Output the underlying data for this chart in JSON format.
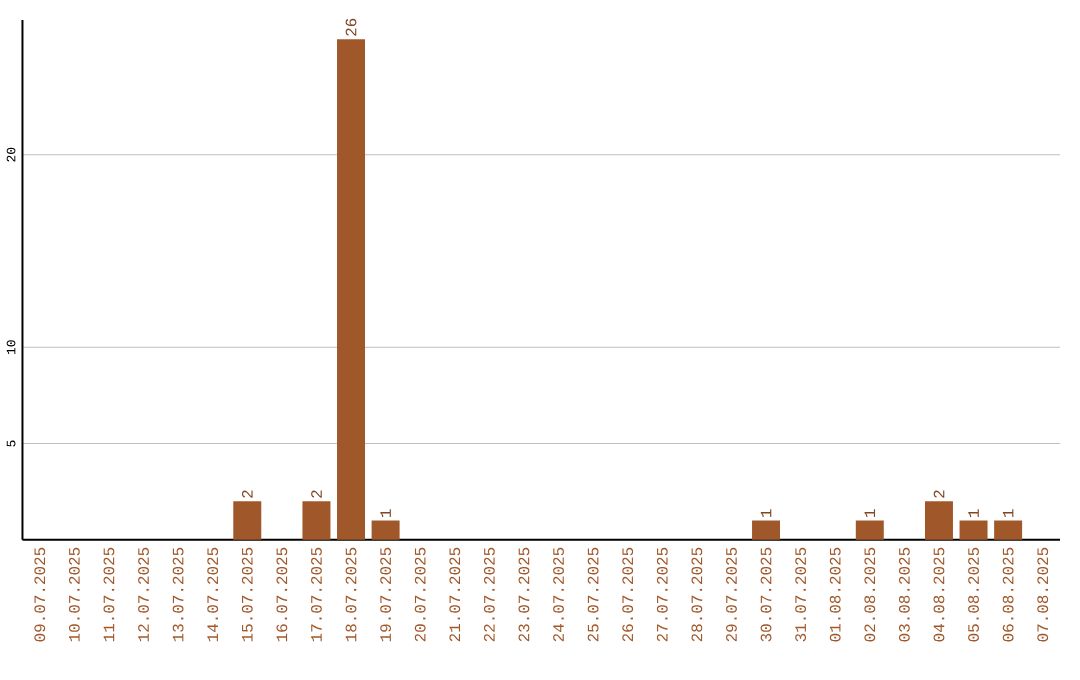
{
  "chart_data": {
    "type": "bar",
    "categories": [
      "09.07.2025",
      "10.07.2025",
      "11.07.2025",
      "12.07.2025",
      "13.07.2025",
      "14.07.2025",
      "15.07.2025",
      "16.07.2025",
      "17.07.2025",
      "18.07.2025",
      "19.07.2025",
      "20.07.2025",
      "21.07.2025",
      "22.07.2025",
      "23.07.2025",
      "24.07.2025",
      "25.07.2025",
      "26.07.2025",
      "27.07.2025",
      "28.07.2025",
      "29.07.2025",
      "30.07.2025",
      "31.07.2025",
      "01.08.2025",
      "02.08.2025",
      "03.08.2025",
      "04.08.2025",
      "05.08.2025",
      "06.08.2025",
      "07.08.2025"
    ],
    "values": [
      0,
      0,
      0,
      0,
      0,
      0,
      2,
      0,
      2,
      26,
      1,
      0,
      0,
      0,
      0,
      0,
      0,
      0,
      0,
      0,
      0,
      1,
      0,
      0,
      1,
      0,
      2,
      1,
      1,
      0
    ],
    "value_labels": [
      null,
      null,
      null,
      null,
      null,
      null,
      "2",
      null,
      "2",
      "26",
      "1",
      null,
      null,
      null,
      null,
      null,
      null,
      null,
      null,
      null,
      null,
      "1",
      null,
      null,
      "1",
      null,
      "2",
      "1",
      "1",
      null
    ],
    "color": "#a0582a",
    "ylim": [
      0,
      27
    ],
    "yticks": [
      5,
      10,
      20
    ],
    "grid": "y"
  }
}
